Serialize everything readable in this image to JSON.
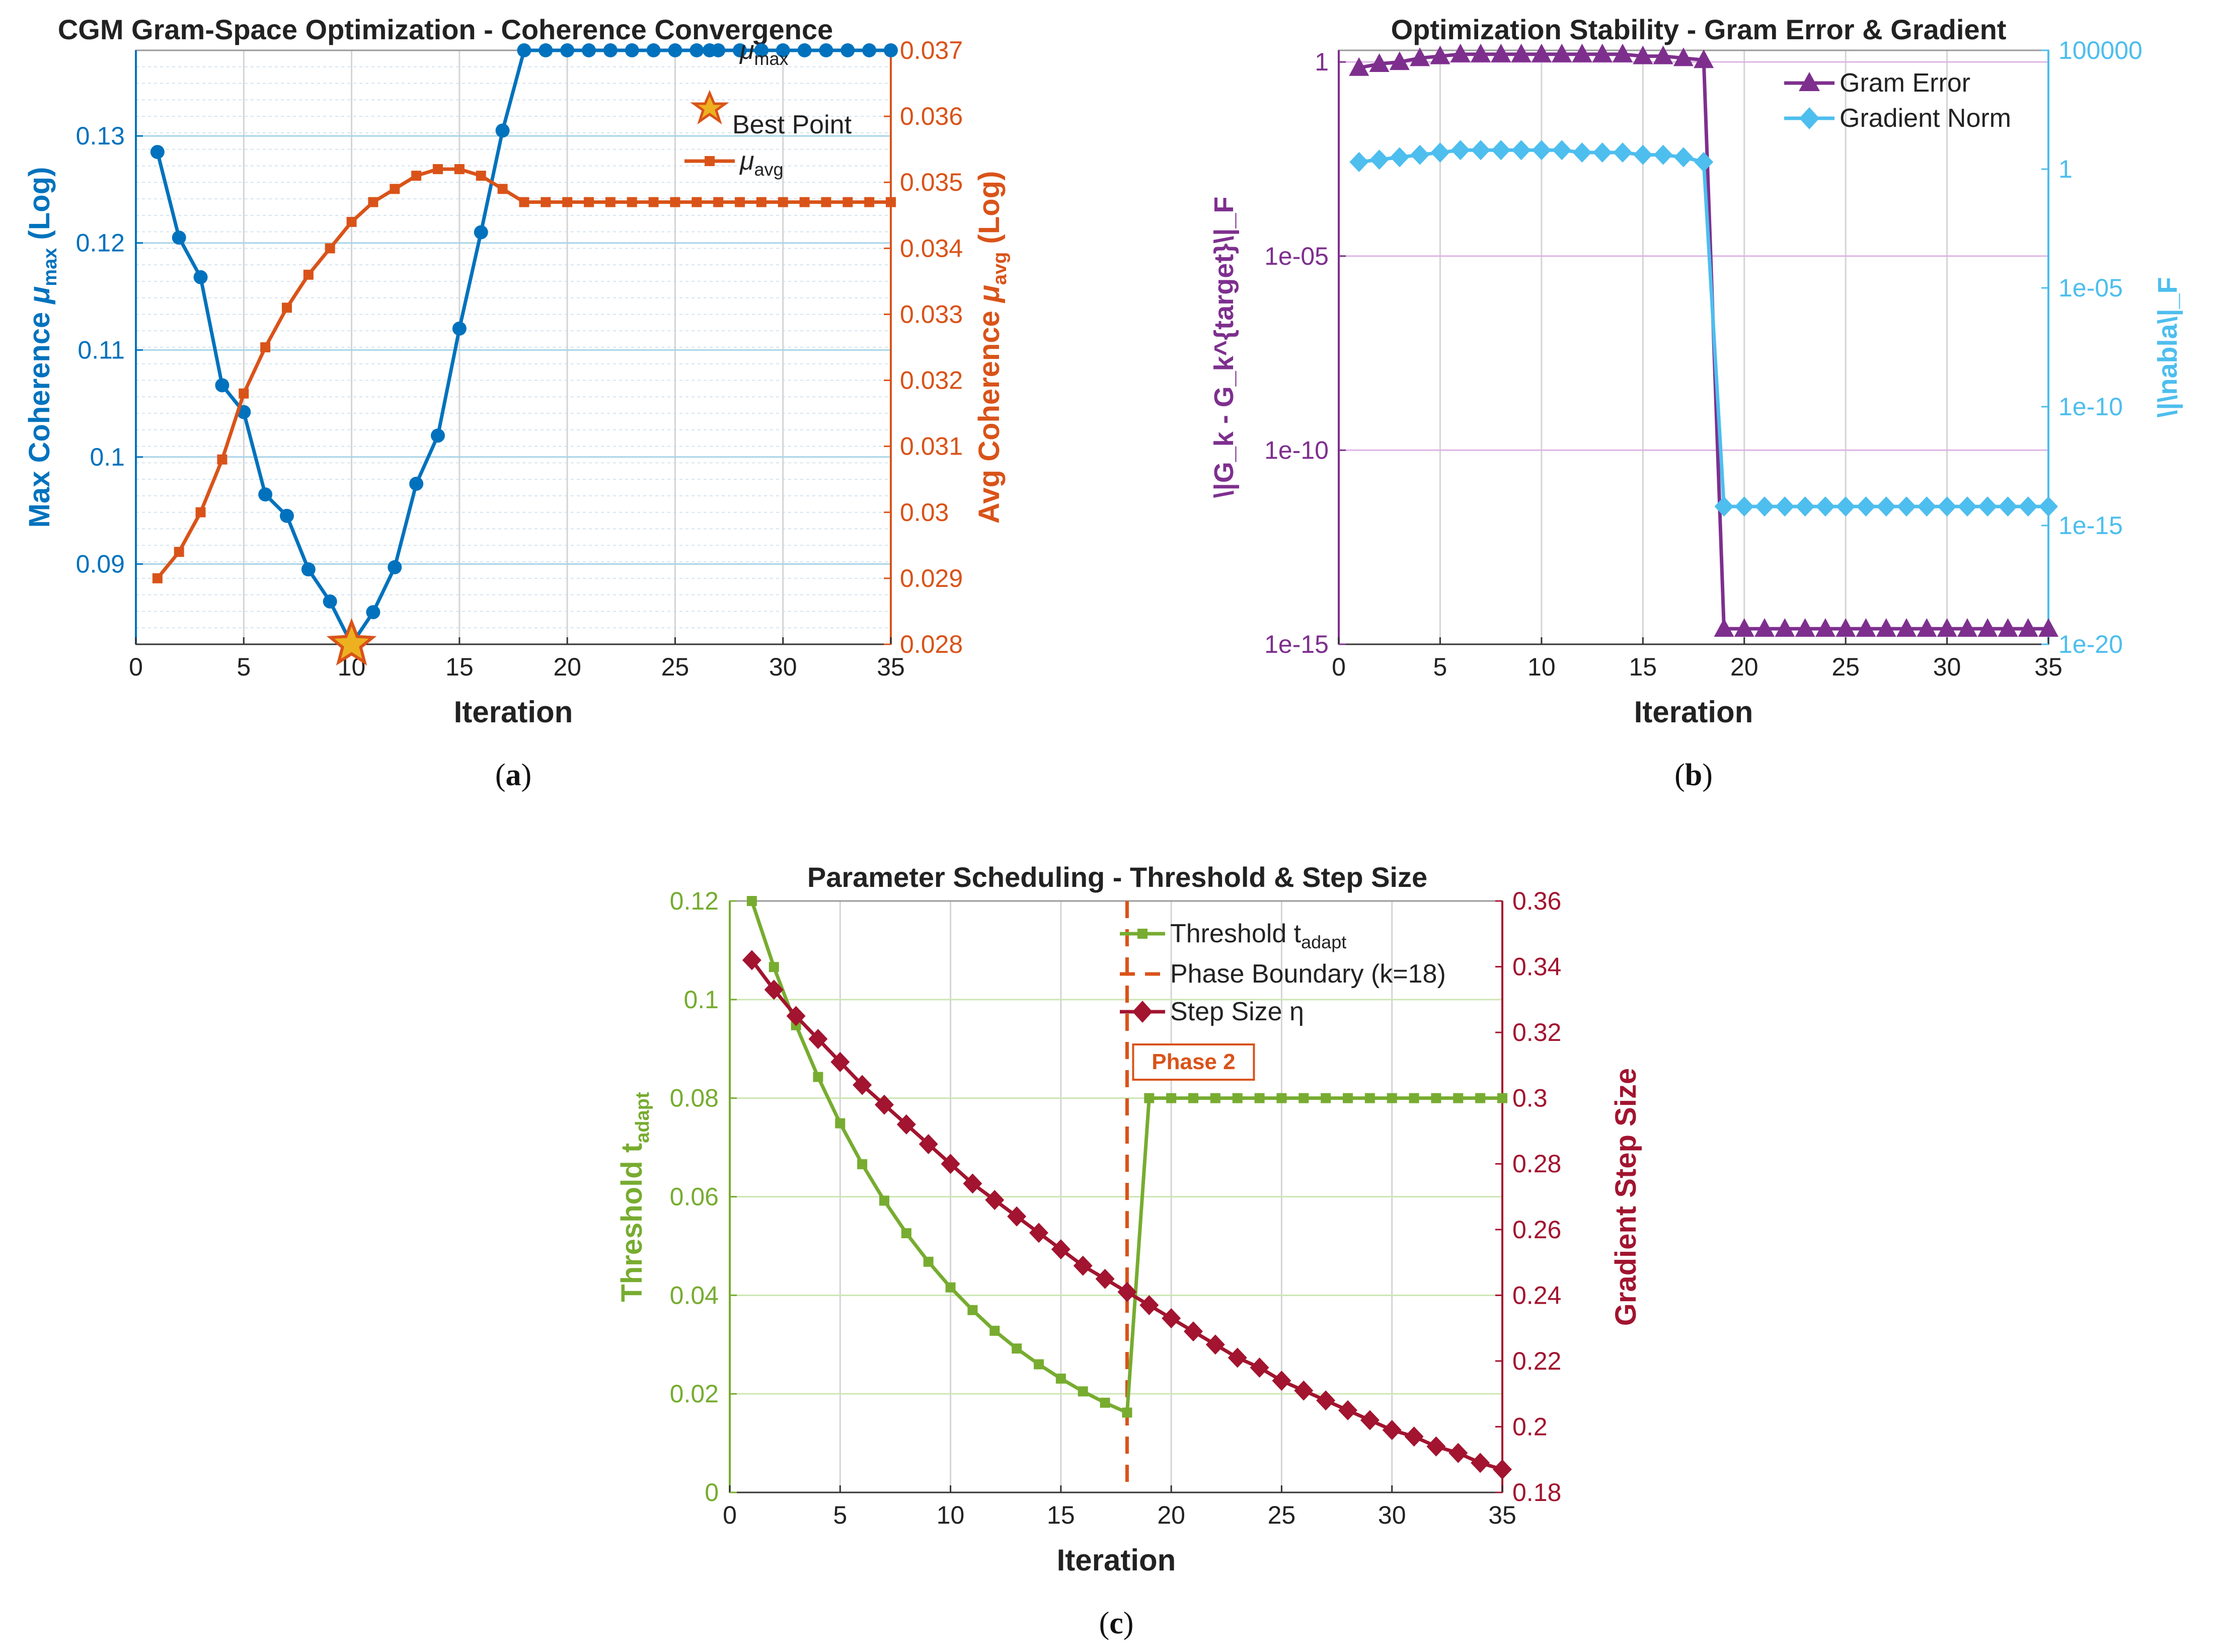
{
  "chart_data": [
    {
      "id": "a",
      "type": "line",
      "title": "CGM Gram-Space Optimization - Coherence Convergence",
      "xlabel": "Iteration",
      "ylabel_left": "Max  Coherence  μmax  (Log)",
      "ylabel_right": "Avg  Coherence  μavg  (Log)",
      "caption": "(a)",
      "xlim": [
        0,
        35
      ],
      "xticks": [
        "0",
        "5",
        "10",
        "15",
        "20",
        "25",
        "30",
        "35"
      ],
      "ylim_left": [
        0.0825,
        0.138
      ],
      "yticks_left": [
        "0.09",
        "0.1",
        "0.11",
        "0.12",
        "0.13"
      ],
      "ylim_right": [
        0.028,
        0.037
      ],
      "yticks_right": [
        "0.028",
        "0.029",
        "0.03",
        "0.031",
        "0.032",
        "0.033",
        "0.034",
        "0.035",
        "0.036",
        "0.037"
      ],
      "colors": {
        "left": "#0072bd",
        "right": "#d95319",
        "star": "#edb120"
      },
      "series": [
        {
          "name": "μmax",
          "axis": "left",
          "marker": "circle",
          "x": [
            1,
            2,
            3,
            4,
            5,
            6,
            7,
            8,
            9,
            10,
            11,
            12,
            13,
            14,
            15,
            16,
            17,
            18,
            19,
            20,
            21,
            22,
            23,
            24,
            25,
            26,
            27,
            28,
            29,
            30,
            31,
            32,
            33,
            34,
            35
          ],
          "values": [
            0.1285,
            0.1205,
            0.1168,
            0.1067,
            0.1042,
            0.0965,
            0.0945,
            0.0895,
            0.0865,
            0.0825,
            0.0855,
            0.0897,
            0.0975,
            0.102,
            0.112,
            0.121,
            0.1305,
            0.138,
            0.138,
            0.138,
            0.138,
            0.138,
            0.138,
            0.138,
            0.138,
            0.138,
            0.138,
            0.138,
            0.138,
            0.138,
            0.138,
            0.138,
            0.138,
            0.138,
            0.138
          ]
        },
        {
          "name": "μavg",
          "axis": "right",
          "marker": "square",
          "x": [
            1,
            2,
            3,
            4,
            5,
            6,
            7,
            8,
            9,
            10,
            11,
            12,
            13,
            14,
            15,
            16,
            17,
            18,
            19,
            20,
            21,
            22,
            23,
            24,
            25,
            26,
            27,
            28,
            29,
            30,
            31,
            32,
            33,
            34,
            35
          ],
          "values": [
            0.029,
            0.0294,
            0.03,
            0.0308,
            0.0318,
            0.0325,
            0.0331,
            0.0336,
            0.034,
            0.0344,
            0.0347,
            0.0349,
            0.0351,
            0.0352,
            0.0352,
            0.0351,
            0.0349,
            0.0347,
            0.0347,
            0.0347,
            0.0347,
            0.0347,
            0.0347,
            0.0347,
            0.0347,
            0.0347,
            0.0347,
            0.0347,
            0.0347,
            0.0347,
            0.0347,
            0.0347,
            0.0347,
            0.0347,
            0.0347
          ]
        }
      ],
      "best_point": {
        "x": 10,
        "y": 0.0825
      },
      "legend": {
        "position": "top-right",
        "entries": [
          {
            "label": "μ",
            "sub": "max"
          },
          {
            "label": "Best Point",
            "sub": ""
          },
          {
            "label": "μ",
            "sub": "avg"
          }
        ]
      }
    },
    {
      "id": "b",
      "type": "line",
      "title": "Optimization Stability - Gram Error & Gradient",
      "xlabel": "Iteration",
      "ylabel_left": "\\|G_k - G_k^{target}\\|_F",
      "ylabel_right": "\\|\\nabla\\|_F",
      "caption": "(b)",
      "xlim": [
        0,
        35
      ],
      "xticks": [
        "0",
        "5",
        "10",
        "15",
        "20",
        "25",
        "30",
        "35"
      ],
      "ylim_left_exp": [
        -15,
        0.3
      ],
      "yticks_left": [
        {
          "exp": 0,
          "label": "1"
        },
        {
          "exp": -5,
          "label": "1e-05"
        },
        {
          "exp": -10,
          "label": "1e-10"
        },
        {
          "exp": -15,
          "label": "1e-15"
        }
      ],
      "ylim_right_exp": [
        -20,
        5
      ],
      "yticks_right": [
        {
          "exp": 5,
          "label": "100000"
        },
        {
          "exp": 0,
          "label": "1"
        },
        {
          "exp": -5,
          "label": "1e-05"
        },
        {
          "exp": -10,
          "label": "1e-10"
        },
        {
          "exp": -15,
          "label": "1e-15"
        },
        {
          "exp": -20,
          "label": "1e-20"
        }
      ],
      "colors": {
        "left": "#7e2f8e",
        "right": "#4dbeee"
      },
      "series": [
        {
          "name": "Gram Error",
          "axis": "left",
          "marker": "triangle",
          "scale": "log10",
          "x": [
            1,
            2,
            3,
            4,
            5,
            6,
            7,
            8,
            9,
            10,
            11,
            12,
            13,
            14,
            15,
            16,
            17,
            18,
            19,
            20,
            21,
            22,
            23,
            24,
            25,
            26,
            27,
            28,
            29,
            30,
            31,
            32,
            33,
            34,
            35
          ],
          "exponents": [
            -0.15,
            -0.05,
            0.0,
            0.1,
            0.15,
            0.2,
            0.2,
            0.2,
            0.2,
            0.2,
            0.2,
            0.2,
            0.2,
            0.2,
            0.15,
            0.15,
            0.1,
            0.05,
            -14.6,
            -14.6,
            -14.6,
            -14.6,
            -14.6,
            -14.6,
            -14.6,
            -14.6,
            -14.6,
            -14.6,
            -14.6,
            -14.6,
            -14.6,
            -14.6,
            -14.6,
            -14.6,
            -14.6
          ]
        },
        {
          "name": "Gradient Norm",
          "axis": "right",
          "marker": "diamond",
          "scale": "log10",
          "x": [
            1,
            2,
            3,
            4,
            5,
            6,
            7,
            8,
            9,
            10,
            11,
            12,
            13,
            14,
            15,
            16,
            17,
            18,
            19,
            20,
            21,
            22,
            23,
            24,
            25,
            26,
            27,
            28,
            29,
            30,
            31,
            32,
            33,
            34,
            35
          ],
          "exponents": [
            0.3,
            0.4,
            0.5,
            0.6,
            0.7,
            0.8,
            0.8,
            0.8,
            0.8,
            0.8,
            0.8,
            0.7,
            0.7,
            0.7,
            0.6,
            0.6,
            0.5,
            0.3,
            -14.2,
            -14.2,
            -14.2,
            -14.2,
            -14.2,
            -14.2,
            -14.2,
            -14.2,
            -14.2,
            -14.2,
            -14.2,
            -14.2,
            -14.2,
            -14.2,
            -14.2,
            -14.2,
            -14.2
          ]
        }
      ],
      "legend": {
        "position": "top-right",
        "entries": [
          {
            "label": "Gram Error"
          },
          {
            "label": "Gradient Norm"
          }
        ]
      }
    },
    {
      "id": "c",
      "type": "line",
      "title": "Parameter Scheduling - Threshold & Step Size",
      "xlabel": "Iteration",
      "ylabel_left": "Threshold  tadapt",
      "ylabel_right": "Gradient Step Size",
      "caption": "(c)",
      "xlim": [
        0,
        35
      ],
      "xticks": [
        "0",
        "5",
        "10",
        "15",
        "20",
        "25",
        "30",
        "35"
      ],
      "ylim_left": [
        0,
        0.12
      ],
      "yticks_left": [
        "0",
        "0.02",
        "0.04",
        "0.06",
        "0.08",
        "0.1",
        "0.12"
      ],
      "ylim_right": [
        0.18,
        0.36
      ],
      "yticks_right": [
        "0.18",
        "0.2",
        "0.22",
        "0.24",
        "0.26",
        "0.28",
        "0.3",
        "0.32",
        "0.34",
        "0.36"
      ],
      "colors": {
        "left": "#77ac30",
        "right": "#a2142f",
        "phase": "#d95319"
      },
      "series": [
        {
          "name": "Threshold",
          "axis": "left",
          "marker": "square",
          "x": [
            1,
            2,
            3,
            4,
            5,
            6,
            7,
            8,
            9,
            10,
            11,
            12,
            13,
            14,
            15,
            16,
            17,
            18,
            19,
            20,
            21,
            22,
            23,
            24,
            25,
            26,
            27,
            28,
            29,
            30,
            31,
            32,
            33,
            34,
            35
          ],
          "values": [
            0.12,
            0.1066,
            0.0948,
            0.0843,
            0.0749,
            0.0666,
            0.0592,
            0.0526,
            0.0468,
            0.0416,
            0.037,
            0.0328,
            0.0292,
            0.026,
            0.0231,
            0.0205,
            0.0182,
            0.0162,
            0.08,
            0.08,
            0.08,
            0.08,
            0.08,
            0.08,
            0.08,
            0.08,
            0.08,
            0.08,
            0.08,
            0.08,
            0.08,
            0.08,
            0.08,
            0.08,
            0.08
          ]
        },
        {
          "name": "Step Size",
          "axis": "right",
          "marker": "diamond",
          "x": [
            1,
            2,
            3,
            4,
            5,
            6,
            7,
            8,
            9,
            10,
            11,
            12,
            13,
            14,
            15,
            16,
            17,
            18,
            19,
            20,
            21,
            22,
            23,
            24,
            25,
            26,
            27,
            28,
            29,
            30,
            31,
            32,
            33,
            34,
            35
          ],
          "values": [
            0.342,
            0.333,
            0.325,
            0.318,
            0.311,
            0.304,
            0.298,
            0.292,
            0.286,
            0.28,
            0.274,
            0.269,
            0.264,
            0.259,
            0.254,
            0.249,
            0.245,
            0.241,
            0.237,
            0.233,
            0.229,
            0.225,
            0.221,
            0.218,
            0.214,
            0.211,
            0.208,
            0.205,
            0.202,
            0.199,
            0.197,
            0.194,
            0.192,
            0.189,
            0.187
          ]
        }
      ],
      "phase_boundary_x": 18,
      "phase_label": "Phase 2",
      "legend": {
        "position": "top-right",
        "entries": [
          {
            "label": "Threshold  t",
            "sub": "adapt"
          },
          {
            "label": "Phase Boundary (k=18)",
            "sub": ""
          },
          {
            "label": "Step  Size  η",
            "sub": ""
          }
        ]
      }
    }
  ]
}
